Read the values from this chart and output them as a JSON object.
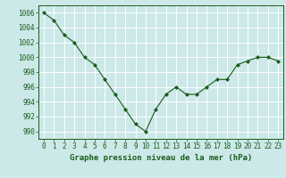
{
  "x": [
    0,
    1,
    2,
    3,
    4,
    5,
    6,
    7,
    8,
    9,
    10,
    11,
    12,
    13,
    14,
    15,
    16,
    17,
    18,
    19,
    20,
    21,
    22,
    23
  ],
  "y": [
    1006,
    1005,
    1003,
    1002,
    1000,
    999,
    997,
    995,
    993,
    991,
    990,
    993,
    995,
    996,
    995,
    995,
    996,
    997,
    997,
    999,
    999.5,
    1000,
    1000,
    999.5
  ],
  "line_color": "#1a5c1a",
  "marker": "D",
  "marker_size": 2,
  "bg_color": "#cce8e8",
  "grid_color": "#ffffff",
  "ylabel_ticks": [
    990,
    992,
    994,
    996,
    998,
    1000,
    1002,
    1004,
    1006
  ],
  "ylim": [
    989,
    1007
  ],
  "xlim": [
    -0.5,
    23.5
  ],
  "xlabel": "Graphe pression niveau de la mer (hPa)",
  "xlabel_fontsize": 6.5,
  "tick_fontsize": 5.5,
  "line_color_spine": "#1a5c1a"
}
